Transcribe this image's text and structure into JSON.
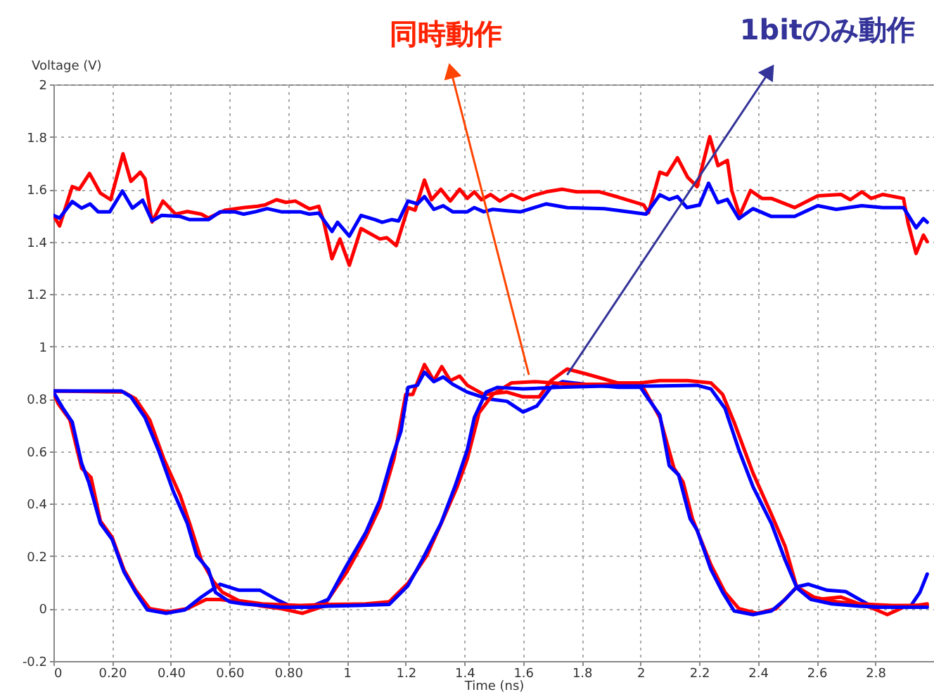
{
  "chart_data": {
    "type": "line",
    "xlabel": "Time (ns)",
    "ylabel": "Voltage (V)",
    "xlim": [
      0,
      3
    ],
    "ylim": [
      -0.2,
      2
    ],
    "xticks": [
      0,
      {
        "value": 0.2,
        "label": "0.20"
      },
      {
        "value": 0.4,
        "label": "0.40"
      },
      {
        "value": 0.6,
        "label": "0.60"
      },
      {
        "value": 0.8,
        "label": "0.80"
      },
      1,
      1.2,
      1.4,
      1.6,
      1.8,
      2,
      2.2,
      2.4,
      2.6,
      2.8
    ],
    "yticks": [
      -0.2,
      0,
      0.2,
      0.4,
      0.6,
      0.8,
      1,
      1.2,
      1.4,
      1.6,
      1.8,
      2
    ],
    "grid": true,
    "line_style": "solid",
    "marker": "none",
    "annotations": [
      {
        "text": "同時動作",
        "x": 1.62,
        "y": 0.87
      },
      {
        "text": "1bitのみ動作",
        "x": 1.75,
        "y": 0.87
      }
    ],
    "series": [
      {
        "color": "#ff0000",
        "x": [
          0,
          0.021,
          0.064,
          0.088,
          0.123,
          0.16,
          0.195,
          0.237,
          0.264,
          0.296,
          0.312,
          0.336,
          0.373,
          0.416,
          0.456,
          0.504,
          0.528,
          0.584,
          0.648,
          0.696,
          0.72,
          0.76,
          0.792,
          0.824,
          0.872,
          0.904,
          0.92,
          0.949,
          0.976,
          1.008,
          1.048,
          1.112,
          1.136,
          1.168,
          1.208,
          1.232,
          1.264,
          1.288,
          1.32,
          1.352,
          1.384,
          1.41,
          1.434,
          1.458,
          1.489,
          1.521,
          1.56,
          1.6,
          1.632,
          1.679,
          1.734,
          1.782,
          1.861,
          1.924,
          2.011,
          2.027,
          2.066,
          2.09,
          2.126,
          2.161,
          2.193,
          2.236,
          2.264,
          2.296,
          2.311,
          2.338,
          2.375,
          2.414,
          2.446,
          2.525,
          2.604,
          2.683,
          2.715,
          2.754,
          2.786,
          2.825,
          2.896,
          2.912,
          2.939,
          2.964,
          2.977
        ],
        "values": [
          1.5,
          1.46,
          1.61,
          1.6,
          1.66,
          1.585,
          1.56,
          1.735,
          1.63,
          1.665,
          1.64,
          1.475,
          1.555,
          1.505,
          1.515,
          1.505,
          1.49,
          1.52,
          1.53,
          1.535,
          1.54,
          1.56,
          1.55,
          1.555,
          1.525,
          1.535,
          1.48,
          1.335,
          1.41,
          1.31,
          1.45,
          1.41,
          1.415,
          1.385,
          1.53,
          1.52,
          1.635,
          1.56,
          1.6,
          1.555,
          1.6,
          1.565,
          1.59,
          1.56,
          1.58,
          1.555,
          1.58,
          1.56,
          1.575,
          1.59,
          1.6,
          1.59,
          1.59,
          1.57,
          1.54,
          1.51,
          1.665,
          1.655,
          1.72,
          1.645,
          1.61,
          1.8,
          1.69,
          1.71,
          1.595,
          1.5,
          1.595,
          1.565,
          1.565,
          1.53,
          1.575,
          1.58,
          1.56,
          1.59,
          1.565,
          1.58,
          1.565,
          1.47,
          1.355,
          1.425,
          1.4
        ]
      },
      {
        "color": "#0000ff",
        "x": [
          0,
          0.021,
          0.064,
          0.096,
          0.125,
          0.152,
          0.192,
          0.235,
          0.269,
          0.304,
          0.336,
          0.368,
          0.432,
          0.464,
          0.528,
          0.568,
          0.616,
          0.648,
          0.688,
          0.728,
          0.776,
          0.84,
          0.872,
          0.904,
          0.949,
          0.968,
          1.008,
          1.048,
          1.096,
          1.12,
          1.152,
          1.176,
          1.208,
          1.24,
          1.264,
          1.296,
          1.328,
          1.36,
          1.41,
          1.434,
          1.466,
          1.497,
          1.545,
          1.592,
          1.679,
          1.75,
          1.877,
          2.019,
          2.066,
          2.098,
          2.126,
          2.158,
          2.201,
          2.232,
          2.264,
          2.296,
          2.335,
          2.383,
          2.446,
          2.525,
          2.604,
          2.667,
          2.754,
          2.825,
          2.896,
          2.939,
          2.964,
          2.977
        ],
        "values": [
          1.5,
          1.49,
          1.553,
          1.528,
          1.544,
          1.514,
          1.514,
          1.593,
          1.528,
          1.558,
          1.479,
          1.5,
          1.496,
          1.484,
          1.484,
          1.514,
          1.514,
          1.505,
          1.514,
          1.526,
          1.514,
          1.514,
          1.505,
          1.509,
          1.439,
          1.474,
          1.421,
          1.5,
          1.484,
          1.474,
          1.484,
          1.479,
          1.555,
          1.544,
          1.572,
          1.523,
          1.537,
          1.514,
          1.514,
          1.53,
          1.514,
          1.523,
          1.518,
          1.514,
          1.544,
          1.53,
          1.526,
          1.505,
          1.579,
          1.561,
          1.572,
          1.53,
          1.54,
          1.623,
          1.549,
          1.561,
          1.488,
          1.526,
          1.496,
          1.496,
          1.537,
          1.523,
          1.537,
          1.53,
          1.53,
          1.453,
          1.488,
          1.474
        ]
      },
      {
        "color": "#ff0000",
        "x": [
          0,
          0.016,
          0.056,
          0.096,
          0.128,
          0.16,
          0.2,
          0.24,
          0.28,
          0.328,
          0.392,
          0.456,
          0.52,
          0.568,
          0.632,
          0.712,
          0.776,
          0.848,
          0.92,
          1.0,
          1.064,
          1.112,
          1.16,
          1.2,
          1.224,
          1.264,
          1.296,
          1.323,
          1.352,
          1.384,
          1.41,
          1.466,
          1.545,
          1.6,
          1.655,
          1.695,
          1.75,
          1.813,
          1.924,
          2.0,
          2.035,
          2.066,
          2.114,
          2.145,
          2.177,
          2.24,
          2.288,
          2.335,
          2.398,
          2.462,
          2.533,
          2.604,
          2.683,
          2.746,
          2.794,
          2.841,
          2.896,
          2.977
        ],
        "values": [
          0.826,
          0.782,
          0.72,
          0.536,
          0.5,
          0.334,
          0.272,
          0.149,
          0.07,
          0,
          -0.012,
          0,
          0.035,
          0.035,
          0.026,
          0.009,
          0,
          -0.018,
          0.009,
          0.141,
          0.272,
          0.387,
          0.571,
          0.817,
          0.817,
          0.931,
          0.87,
          0.923,
          0.87,
          0.887,
          0.852,
          0.817,
          0.826,
          0.808,
          0.808,
          0.87,
          0.914,
          0.896,
          0.861,
          0.861,
          0.791,
          0.729,
          0.536,
          0.483,
          0.343,
          0.167,
          0.062,
          0,
          -0.018,
          0,
          0.083,
          0.035,
          0.044,
          0.018,
          0,
          -0.023,
          0.005,
          0.018
        ]
      },
      {
        "color": "#0000ff",
        "x": [
          0,
          0.032,
          0.064,
          0.096,
          0.12,
          0.16,
          0.2,
          0.24,
          0.28,
          0.32,
          0.384,
          0.448,
          0.504,
          0.568,
          0.632,
          0.704,
          0.76,
          0.808,
          0.872,
          0.936,
          1.0,
          1.064,
          1.112,
          1.152,
          1.184,
          1.208,
          1.24,
          1.264,
          1.296,
          1.328,
          1.36,
          1.41,
          1.481,
          1.545,
          1.6,
          1.647,
          1.695,
          1.734,
          1.813,
          1.924,
          2.0,
          2.027,
          2.066,
          2.098,
          2.13,
          2.169,
          2.193,
          2.24,
          2.28,
          2.319,
          2.383,
          2.446,
          2.493,
          2.533,
          2.572,
          2.636,
          2.699,
          2.746,
          2.794,
          2.857,
          2.92,
          2.952,
          2.977
        ],
        "values": [
          0.826,
          0.765,
          0.712,
          0.554,
          0.483,
          0.325,
          0.264,
          0.141,
          0.062,
          -0.005,
          -0.018,
          -0.005,
          0.044,
          0.093,
          0.07,
          0.07,
          0.035,
          0.009,
          0.005,
          0.035,
          0.167,
          0.29,
          0.413,
          0.571,
          0.677,
          0.844,
          0.852,
          0.902,
          0.866,
          0.884,
          0.856,
          0.826,
          0.8,
          0.791,
          0.75,
          0.773,
          0.844,
          0.866,
          0.856,
          0.844,
          0.844,
          0.8,
          0.738,
          0.545,
          0.51,
          0.343,
          0.299,
          0.149,
          0.062,
          -0.009,
          -0.023,
          -0.009,
          0.035,
          0.083,
          0.093,
          0.07,
          0.065,
          0.035,
          0.005,
          0.005,
          0.009,
          0.062,
          0.132
        ]
      },
      {
        "color": "#ff0000",
        "x": [
          0,
          0.24,
          0.28,
          0.328,
          0.376,
          0.432,
          0.464,
          0.504,
          0.544,
          0.576,
          0.632,
          0.712,
          0.84,
          0.936,
          1.064,
          1.144,
          1.208,
          1.272,
          1.328,
          1.376,
          1.41,
          1.45,
          1.497,
          1.56,
          1.64,
          1.766,
          1.877,
          2.0,
          2.066,
          2.161,
          2.24,
          2.28,
          2.319,
          2.383,
          2.446,
          2.493,
          2.533,
          2.588,
          2.667,
          2.746,
          2.857,
          2.977
        ],
        "values": [
          0.83,
          0.826,
          0.8,
          0.72,
          0.571,
          0.431,
          0.325,
          0.185,
          0.105,
          0.062,
          0.03,
          0.018,
          0.012,
          0.016,
          0.018,
          0.026,
          0.097,
          0.202,
          0.343,
          0.466,
          0.571,
          0.747,
          0.817,
          0.861,
          0.866,
          0.856,
          0.856,
          0.861,
          0.87,
          0.87,
          0.861,
          0.817,
          0.711,
          0.518,
          0.36,
          0.237,
          0.079,
          0.044,
          0.026,
          0.018,
          0.012,
          0.012
        ]
      },
      {
        "color": "#0000ff",
        "x": [
          0,
          0.232,
          0.264,
          0.312,
          0.36,
          0.408,
          0.456,
          0.488,
          0.528,
          0.552,
          0.6,
          0.648,
          0.712,
          0.776,
          0.872,
          0.936,
          1.032,
          1.144,
          1.208,
          1.256,
          1.32,
          1.368,
          1.41,
          1.434,
          1.474,
          1.513,
          1.6,
          1.719,
          1.877,
          2.035,
          2.193,
          2.24,
          2.288,
          2.335,
          2.383,
          2.446,
          2.493,
          2.533,
          2.58,
          2.652,
          2.746,
          2.825,
          2.977
        ],
        "values": [
          0.83,
          0.83,
          0.808,
          0.729,
          0.598,
          0.448,
          0.325,
          0.202,
          0.149,
          0.062,
          0.026,
          0.018,
          0.012,
          0.005,
          0.005,
          0.009,
          0.012,
          0.016,
          0.088,
          0.185,
          0.325,
          0.466,
          0.606,
          0.729,
          0.826,
          0.844,
          0.838,
          0.844,
          0.849,
          0.849,
          0.852,
          0.838,
          0.764,
          0.606,
          0.466,
          0.325,
          0.185,
          0.079,
          0.035,
          0.018,
          0.009,
          0.005,
          0.005
        ]
      }
    ]
  }
}
